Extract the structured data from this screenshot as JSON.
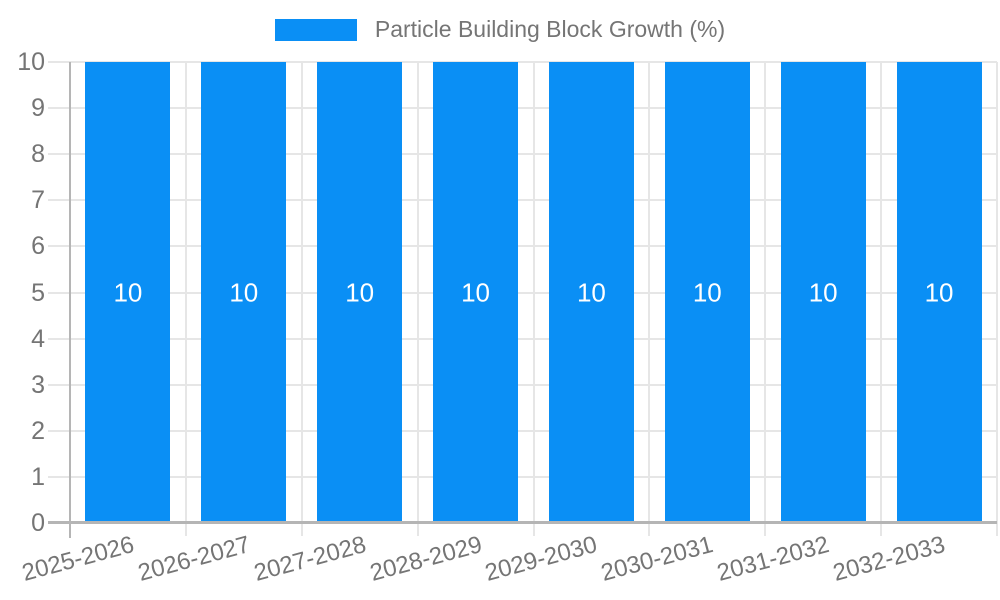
{
  "chart_data": {
    "type": "bar",
    "title": "Particle Building Block Growth (%)",
    "categories": [
      "2025-2026",
      "2026-2027",
      "2027-2028",
      "2028-2029",
      "2029-2030",
      "2030-2031",
      "2031-2032",
      "2032-2033"
    ],
    "values": [
      10,
      10,
      10,
      10,
      10,
      10,
      10,
      10
    ],
    "bar_value_labels": [
      "10",
      "10",
      "10",
      "10",
      "10",
      "10",
      "10",
      "10"
    ],
    "xlabel": "",
    "ylabel": "",
    "ylim": [
      0,
      10
    ],
    "yticks": [
      0,
      1,
      2,
      3,
      4,
      5,
      6,
      7,
      8,
      9,
      10
    ],
    "grid": true,
    "legend_position": "top-center",
    "bar_label_position": "middle",
    "colors": {
      "bar": "#0a8ff5",
      "bar_label": "#ffffff",
      "legend_text": "#757575",
      "tick_label": "#757575",
      "gridline": "#e6e6e6",
      "axis_line": "#b5b5b5",
      "background": "#ffffff"
    }
  }
}
